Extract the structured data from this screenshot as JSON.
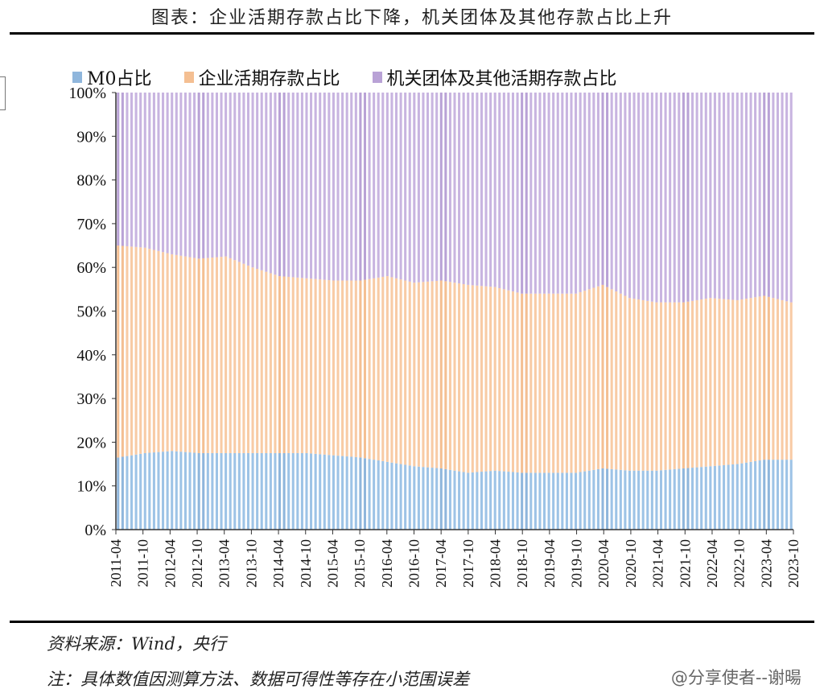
{
  "title": "图表：企业活期存款占比下降，机关团体及其他存款占比上升",
  "source": "资料来源：Wind，央行",
  "note": "注：具体数值因测算方法、数据可得性等存在小范围误差",
  "watermark": "@分享使者--谢暘",
  "colors": {
    "m0": "#9dc3e6",
    "enterprise": "#f8cba5",
    "org": "#c8b4e0",
    "m0_dark": "#8fb6dc",
    "enterprise_dark": "#f4bf92",
    "org_dark": "#b9a2d6"
  },
  "chart_data": {
    "type": "bar",
    "stacked": true,
    "percent": true,
    "start": "2011-04",
    "tick_labels": [
      "2011-04",
      "2011-10",
      "2012-04",
      "2012-10",
      "2013-04",
      "2013-10",
      "2014-04",
      "2014-10",
      "2015-04",
      "2015-10",
      "2016-04",
      "2016-10",
      "2017-04",
      "2017-10",
      "2018-04",
      "2018-10",
      "2019-04",
      "2019-10",
      "2020-04",
      "2020-10",
      "2021-04",
      "2021-10",
      "2022-04",
      "2022-10",
      "2023-04",
      "2023-10"
    ],
    "y_ticks": [
      "0%",
      "10%",
      "20%",
      "30%",
      "40%",
      "50%",
      "60%",
      "70%",
      "80%",
      "90%",
      "100%"
    ],
    "ylim": [
      0,
      100
    ],
    "legend": [
      "M0占比",
      "企业活期存款占比",
      "机关团体及其他活期存款占比"
    ],
    "series": [
      {
        "name": "M0占比",
        "anchors": [
          16.5,
          17.5,
          18,
          17.5,
          17.5,
          17.5,
          17.5,
          17.5,
          17,
          16.5,
          15.5,
          14.5,
          14,
          13,
          13.5,
          13,
          13,
          13,
          14,
          13.5,
          13.5,
          14,
          14.5,
          15,
          16,
          16
        ]
      },
      {
        "name": "企业活期存款占比",
        "anchors": [
          48.5,
          47,
          45,
          44.5,
          45,
          42.5,
          40.5,
          40,
          40,
          40.5,
          42.5,
          42,
          43,
          43,
          42,
          41,
          41,
          41,
          42,
          39.5,
          38.5,
          38,
          38.5,
          37.5,
          37.5,
          36
        ]
      },
      {
        "name": "机关团体及其他活期存款占比",
        "anchors": [
          35,
          35.5,
          37,
          38,
          37.5,
          40,
          42,
          42.5,
          43,
          43,
          42,
          43.5,
          43,
          44,
          44.5,
          46,
          46,
          46,
          44,
          47,
          48,
          48,
          47,
          47.5,
          46.5,
          48
        ]
      }
    ]
  }
}
